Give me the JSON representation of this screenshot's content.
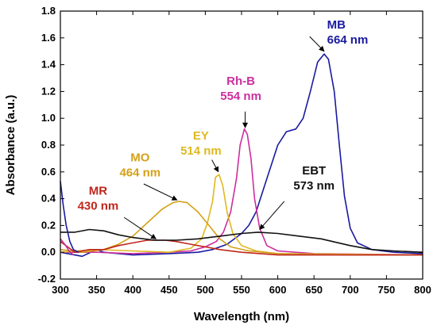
{
  "chart_data": {
    "type": "line",
    "xlabel": "Wavelength (nm)",
    "ylabel": "Absorbance (a.u.)",
    "xlim": [
      300,
      800
    ],
    "ylim": [
      -0.2,
      1.8
    ],
    "xticks": [
      300,
      350,
      400,
      450,
      500,
      550,
      600,
      650,
      700,
      750,
      800
    ],
    "yticks": [
      -0.2,
      0.0,
      0.2,
      0.4,
      0.6,
      0.8,
      1.0,
      1.2,
      1.4,
      1.6,
      1.8
    ],
    "tick_labels_x": [
      "300",
      "350",
      "400",
      "450",
      "500",
      "550",
      "600",
      "650",
      "700",
      "750",
      "800"
    ],
    "tick_labels_y": [
      "-0.2",
      "0.0",
      "0.2",
      "0.4",
      "0.6",
      "0.8",
      "1.0",
      "1.2",
      "1.4",
      "1.6",
      "1.8"
    ],
    "grid": false,
    "legend": "none",
    "series": [
      {
        "name": "MB",
        "color": "#1a1aa0",
        "points": [
          [
            300,
            0.0
          ],
          [
            330,
            -0.03
          ],
          [
            350,
            0.02
          ],
          [
            360,
            0.0
          ],
          [
            400,
            -0.02
          ],
          [
            450,
            -0.01
          ],
          [
            490,
            0.0
          ],
          [
            510,
            0.02
          ],
          [
            530,
            0.06
          ],
          [
            550,
            0.14
          ],
          [
            560,
            0.2
          ],
          [
            570,
            0.3
          ],
          [
            585,
            0.55
          ],
          [
            600,
            0.8
          ],
          [
            612,
            0.9
          ],
          [
            625,
            0.92
          ],
          [
            635,
            1.0
          ],
          [
            645,
            1.2
          ],
          [
            655,
            1.42
          ],
          [
            664,
            1.48
          ],
          [
            670,
            1.44
          ],
          [
            678,
            1.2
          ],
          [
            685,
            0.8
          ],
          [
            692,
            0.42
          ],
          [
            700,
            0.18
          ],
          [
            710,
            0.07
          ],
          [
            730,
            0.02
          ],
          [
            760,
            0.0
          ],
          [
            800,
            -0.01
          ]
        ]
      },
      {
        "name": "Rh-B",
        "color": "#cc2e9e",
        "points": [
          [
            300,
            0.0
          ],
          [
            350,
            0.0
          ],
          [
            400,
            -0.01
          ],
          [
            450,
            0.0
          ],
          [
            480,
            0.01
          ],
          [
            500,
            0.04
          ],
          [
            515,
            0.08
          ],
          [
            525,
            0.15
          ],
          [
            535,
            0.3
          ],
          [
            543,
            0.55
          ],
          [
            548,
            0.8
          ],
          [
            554,
            0.92
          ],
          [
            558,
            0.88
          ],
          [
            563,
            0.7
          ],
          [
            568,
            0.4
          ],
          [
            575,
            0.18
          ],
          [
            585,
            0.05
          ],
          [
            600,
            0.01
          ],
          [
            650,
            -0.01
          ],
          [
            800,
            -0.02
          ]
        ]
      },
      {
        "name": "EY",
        "color": "#e0b820",
        "points": [
          [
            300,
            0.0
          ],
          [
            350,
            0.02
          ],
          [
            400,
            0.01
          ],
          [
            450,
            0.0
          ],
          [
            480,
            0.03
          ],
          [
            495,
            0.1
          ],
          [
            503,
            0.22
          ],
          [
            510,
            0.38
          ],
          [
            514,
            0.56
          ],
          [
            519,
            0.58
          ],
          [
            524,
            0.5
          ],
          [
            530,
            0.3
          ],
          [
            538,
            0.14
          ],
          [
            550,
            0.05
          ],
          [
            570,
            0.01
          ],
          [
            600,
            -0.01
          ],
          [
            800,
            -0.02
          ]
        ]
      },
      {
        "name": "MO",
        "color": "#d4a017",
        "points": [
          [
            300,
            0.02
          ],
          [
            330,
            0.0
          ],
          [
            360,
            0.02
          ],
          [
            380,
            0.06
          ],
          [
            400,
            0.12
          ],
          [
            420,
            0.22
          ],
          [
            440,
            0.32
          ],
          [
            455,
            0.37
          ],
          [
            464,
            0.38
          ],
          [
            475,
            0.37
          ],
          [
            490,
            0.3
          ],
          [
            505,
            0.2
          ],
          [
            520,
            0.1
          ],
          [
            535,
            0.04
          ],
          [
            560,
            0.01
          ],
          [
            600,
            -0.01
          ],
          [
            700,
            -0.02
          ],
          [
            800,
            -0.02
          ]
        ]
      },
      {
        "name": "MR",
        "color": "#c0261c",
        "points": [
          [
            300,
            0.08
          ],
          [
            310,
            0.04
          ],
          [
            320,
            0.0
          ],
          [
            340,
            0.02
          ],
          [
            360,
            0.02
          ],
          [
            380,
            0.05
          ],
          [
            400,
            0.07
          ],
          [
            420,
            0.09
          ],
          [
            430,
            0.09
          ],
          [
            445,
            0.09
          ],
          [
            460,
            0.08
          ],
          [
            480,
            0.06
          ],
          [
            500,
            0.04
          ],
          [
            520,
            0.02
          ],
          [
            550,
            0.0
          ],
          [
            600,
            -0.02
          ],
          [
            700,
            -0.02
          ],
          [
            800,
            -0.02
          ]
        ]
      },
      {
        "name": "EBT",
        "color": "#111111",
        "points": [
          [
            300,
            0.15
          ],
          [
            320,
            0.15
          ],
          [
            340,
            0.17
          ],
          [
            360,
            0.16
          ],
          [
            380,
            0.13
          ],
          [
            400,
            0.11
          ],
          [
            430,
            0.09
          ],
          [
            460,
            0.09
          ],
          [
            490,
            0.1
          ],
          [
            520,
            0.12
          ],
          [
            550,
            0.14
          ],
          [
            573,
            0.15
          ],
          [
            600,
            0.14
          ],
          [
            630,
            0.12
          ],
          [
            660,
            0.1
          ],
          [
            700,
            0.05
          ],
          [
            730,
            0.02
          ],
          [
            760,
            0.01
          ],
          [
            800,
            0.0
          ]
        ]
      },
      {
        "name": "edge",
        "color": "#1a1aa0",
        "points": [
          [
            300,
            0.53
          ],
          [
            304,
            0.35
          ],
          [
            308,
            0.2
          ],
          [
            313,
            0.08
          ],
          [
            318,
            0.02
          ],
          [
            325,
            0.0
          ]
        ]
      },
      {
        "name": "edge2",
        "color": "#cc2e9e",
        "points": [
          [
            300,
            0.1
          ],
          [
            306,
            0.06
          ],
          [
            312,
            0.01
          ],
          [
            318,
            -0.02
          ]
        ]
      }
    ],
    "annotations": [
      {
        "lines": [
          "MB",
          "664 nm"
        ],
        "color": "#1a1aa0",
        "x": 668,
        "y": 1.67,
        "anchor": "start",
        "arrow_from": [
          644,
          1.61
        ],
        "arrow_to": [
          664,
          1.5
        ]
      },
      {
        "lines": [
          "Rh-B",
          "554 nm"
        ],
        "color": "#cc2e9e",
        "x": 549,
        "y": 1.25,
        "anchor": "middle",
        "arrow_from": [
          555,
          1.05
        ],
        "arrow_to": [
          555,
          0.93
        ]
      },
      {
        "lines": [
          "EY",
          "514 nm"
        ],
        "color": "#e0b820",
        "x": 494,
        "y": 0.84,
        "anchor": "middle",
        "arrow_from": [
          509,
          0.69
        ],
        "arrow_to": [
          518,
          0.6
        ]
      },
      {
        "lines": [
          "MO",
          "464 nm"
        ],
        "color": "#d4a017",
        "x": 410,
        "y": 0.68,
        "anchor": "middle",
        "arrow_from": [
          415,
          0.51
        ],
        "arrow_to": [
          461,
          0.39
        ]
      },
      {
        "lines": [
          "MR",
          "430 nm"
        ],
        "color": "#c0261c",
        "x": 352,
        "y": 0.43,
        "anchor": "middle",
        "arrow_from": [
          388,
          0.26
        ],
        "arrow_to": [
          432,
          0.1
        ]
      },
      {
        "lines": [
          "EBT",
          "573 nm"
        ],
        "color": "#111111",
        "x": 650,
        "y": 0.58,
        "anchor": "middle",
        "arrow_from": [
          609,
          0.38
        ],
        "arrow_to": [
          575,
          0.17
        ]
      }
    ]
  }
}
